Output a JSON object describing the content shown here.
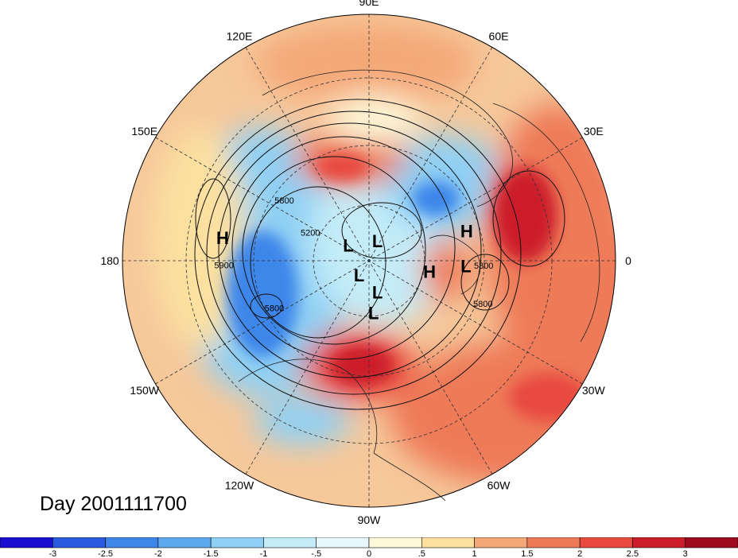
{
  "title": "Day 2001111700",
  "longitude_labels": [
    {
      "text": "90E",
      "lon": 90
    },
    {
      "text": "60E",
      "lon": 60
    },
    {
      "text": "30E",
      "lon": 30
    },
    {
      "text": "0",
      "lon": 0
    },
    {
      "text": "30W",
      "lon": -30
    },
    {
      "text": "60W",
      "lon": -60
    },
    {
      "text": "90W",
      "lon": -90
    },
    {
      "text": "120W",
      "lon": -120
    },
    {
      "text": "150W",
      "lon": -150
    },
    {
      "text": "180",
      "lon": 180
    },
    {
      "text": "150E",
      "lon": 150
    },
    {
      "text": "120E",
      "lon": 120
    }
  ],
  "pressure_systems": [
    {
      "type": "H",
      "lon": 171,
      "lat": 28
    },
    {
      "type": "H",
      "lon": 17,
      "lat": 45
    },
    {
      "type": "H",
      "lon": -10,
      "lat": 62
    },
    {
      "type": "L",
      "lon": -3,
      "lat": 47
    },
    {
      "type": "L",
      "lon": 143,
      "lat": 78
    },
    {
      "type": "L",
      "lon": 67,
      "lat": 80
    },
    {
      "type": "L",
      "lon": -125,
      "lat": 82
    },
    {
      "type": "L",
      "lon": -75,
      "lat": 75
    },
    {
      "type": "L",
      "lon": -85,
      "lat": 66
    }
  ],
  "contour_labels": [
    {
      "text": "5800",
      "lon": 146,
      "lat": 45
    },
    {
      "text": "5900",
      "lon": 183,
      "lat": 29
    },
    {
      "text": "5200",
      "lon": 157,
      "lat": 61
    },
    {
      "text": "5800",
      "lon": -152,
      "lat": 43
    },
    {
      "text": "5800",
      "lon": -22,
      "lat": 37
    },
    {
      "text": "5800",
      "lon": -4,
      "lat": 40
    }
  ],
  "colorbar": {
    "colors": [
      "#1a0fd0",
      "#2a5ae0",
      "#3e86ea",
      "#5ea8f0",
      "#8fd0f4",
      "#c4ecf8",
      "#e8f8fc",
      "#fdf8d8",
      "#fbe0a0",
      "#f4a878",
      "#ee7a58",
      "#e84a40",
      "#cc1e2a",
      "#9e0a1e"
    ],
    "labels": [
      "-3",
      "-2.5",
      "-2",
      "-1.5",
      "-1",
      "-.5",
      "0",
      ".5",
      "1",
      "1.5",
      "2",
      "2.5",
      "3"
    ]
  }
}
